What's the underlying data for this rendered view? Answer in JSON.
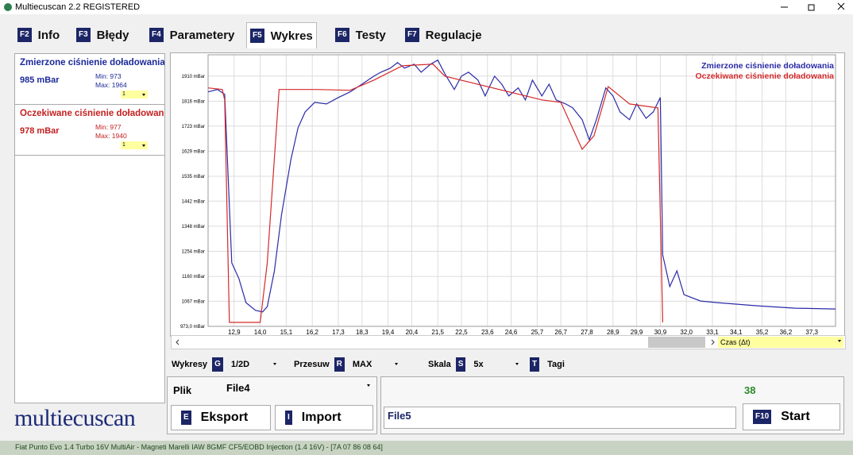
{
  "window": {
    "title": "Multiecuscan 2.2 REGISTERED"
  },
  "tabs": [
    {
      "key": "F2",
      "label": "Info"
    },
    {
      "key": "F3",
      "label": "Błędy"
    },
    {
      "key": "F4",
      "label": "Parametery"
    },
    {
      "key": "F5",
      "label": "Wykres"
    },
    {
      "key": "F6",
      "label": "Testy"
    },
    {
      "key": "F7",
      "label": "Regulacje"
    }
  ],
  "sensors": [
    {
      "name": "Zmierzone ciśnienie doładowania",
      "value": "985 mBar",
      "min": "Min: 973",
      "max": "Max: 1964",
      "scale": "1"
    },
    {
      "name": "Oczekiwane ciśnienie doładowania",
      "value": "978 mBar",
      "min": "Min: 977",
      "max": "Max: 1940",
      "scale": "1"
    }
  ],
  "chart_data": {
    "type": "line",
    "series": [
      {
        "name": "Zmierzone ciśnienie doładowania",
        "color": "#2b2ba8",
        "x": [
          11.8,
          12.2,
          12.5,
          12.8,
          13.1,
          13.4,
          13.8,
          14.1,
          14.3,
          14.6,
          14.9,
          15.3,
          15.6,
          15.9,
          16.3,
          16.8,
          17.3,
          17.8,
          18.3,
          18.8,
          19.1,
          19.5,
          19.8,
          20.1,
          20.5,
          20.8,
          21.2,
          21.5,
          21.8,
          22.2,
          22.5,
          22.8,
          23.2,
          23.5,
          23.9,
          24.2,
          24.5,
          24.9,
          25.2,
          25.5,
          25.9,
          26.2,
          26.5,
          26.9,
          27.2,
          27.6,
          27.9,
          28.2,
          28.6,
          28.9,
          29.2,
          29.6,
          29.9,
          30.3,
          30.6,
          30.9,
          31.0,
          31.3,
          31.6,
          31.9,
          32.6,
          33.3,
          35.0,
          36.6,
          38.3
        ],
        "values": [
          1851,
          1860,
          1842,
          1211,
          1152,
          1062,
          1033,
          1027,
          1047,
          1181,
          1390,
          1598,
          1717,
          1776,
          1812,
          1806,
          1830,
          1851,
          1880,
          1910,
          1925,
          1940,
          1961,
          1940,
          1955,
          1925,
          1955,
          1970,
          1919,
          1860,
          1910,
          1925,
          1895,
          1836,
          1910,
          1880,
          1836,
          1866,
          1821,
          1895,
          1836,
          1880,
          1821,
          1806,
          1791,
          1747,
          1672,
          1747,
          1866,
          1836,
          1776,
          1747,
          1806,
          1752,
          1776,
          1830,
          1241,
          1122,
          1181,
          1092,
          1068,
          1062,
          1050,
          1041,
          1038
        ]
      },
      {
        "name": "Oczekiwane ciśnienie doładowania",
        "color": "#d42a2a",
        "x": [
          11.8,
          12.4,
          12.5,
          12.7,
          14.0,
          14.3,
          14.8,
          16.4,
          17.8,
          18.8,
          20.0,
          21.3,
          21.8,
          25.9,
          26.7,
          27.6,
          28.1,
          28.7,
          29.6,
          30.8,
          31.0
        ],
        "values": [
          1866,
          1860,
          1821,
          988,
          988,
          1211,
          1860,
          1860,
          1857,
          1895,
          1949,
          1955,
          1910,
          1821,
          1812,
          1636,
          1687,
          1871,
          1806,
          1791,
          988
        ]
      }
    ],
    "xlim": [
      11.8,
      38.3
    ],
    "ylim": [
      973,
      1990
    ],
    "xticks": [
      {
        "value": 12.9,
        "label": "12,9"
      },
      {
        "value": 14.0,
        "label": "14,0"
      },
      {
        "value": 15.1,
        "label": "15,1"
      },
      {
        "value": 16.2,
        "label": "16,2"
      },
      {
        "value": 17.3,
        "label": "17,3"
      },
      {
        "value": 18.3,
        "label": "18,3"
      },
      {
        "value": 19.4,
        "label": "19,4"
      },
      {
        "value": 20.4,
        "label": "20,4"
      },
      {
        "value": 21.5,
        "label": "21,5"
      },
      {
        "value": 22.5,
        "label": "22,5"
      },
      {
        "value": 23.6,
        "label": "23,6"
      },
      {
        "value": 24.6,
        "label": "24,6"
      },
      {
        "value": 25.7,
        "label": "25,7"
      },
      {
        "value": 26.7,
        "label": "26,7"
      },
      {
        "value": 27.8,
        "label": "27,8"
      },
      {
        "value": 28.9,
        "label": "28,9"
      },
      {
        "value": 29.9,
        "label": "29,9"
      },
      {
        "value": 30.9,
        "label": "30,9"
      },
      {
        "value": 32.0,
        "label": "32,0"
      },
      {
        "value": 33.1,
        "label": "33,1"
      },
      {
        "value": 34.1,
        "label": "34,1"
      },
      {
        "value": 35.2,
        "label": "35,2"
      },
      {
        "value": 36.2,
        "label": "36,2"
      },
      {
        "value": 37.3,
        "label": "37,3"
      }
    ],
    "yticks": [
      {
        "value": 973,
        "label": "973,0 mBar"
      },
      {
        "value": 1067,
        "label": "1067 mBar"
      },
      {
        "value": 1160,
        "label": "1160 mBar"
      },
      {
        "value": 1254,
        "label": "1254 mBar"
      },
      {
        "value": 1348,
        "label": "1348 mBar"
      },
      {
        "value": 1442,
        "label": "1442 mBar"
      },
      {
        "value": 1535,
        "label": "1535 mBar"
      },
      {
        "value": 1629,
        "label": "1629 mBar"
      },
      {
        "value": 1723,
        "label": "1723 mBar"
      },
      {
        "value": 1816,
        "label": "1816 mBar"
      },
      {
        "value": 1910,
        "label": "1910 mBar"
      }
    ],
    "grid": true,
    "legend": "upper right"
  },
  "axis_selector": "Czas (Δt)",
  "toolbar": [
    {
      "label": "Wykresy",
      "key": "G",
      "value": "1/2D"
    },
    {
      "label": "Przesuw",
      "key": "R",
      "value": "MAX"
    },
    {
      "label": "Skala",
      "key": "S",
      "value": "5x"
    },
    {
      "key": "T",
      "value": "Tagi"
    }
  ],
  "file_panel": {
    "label": "Plik",
    "file": "File4",
    "export": {
      "key": "E",
      "label": "Eksport"
    },
    "import": {
      "key": "I",
      "label": "Import"
    }
  },
  "run_panel": {
    "counter": 38,
    "file": "File5",
    "start": {
      "key": "F10",
      "label": "Start"
    }
  },
  "logo": "multiecuscan",
  "status": "Fiat Punto Evo 1.4 Turbo 16V MultiAir - Magneti Marelli IAW 8GMF CF5/EOBD Injection (1.4 16V) - [7A 07 86 08 64]"
}
